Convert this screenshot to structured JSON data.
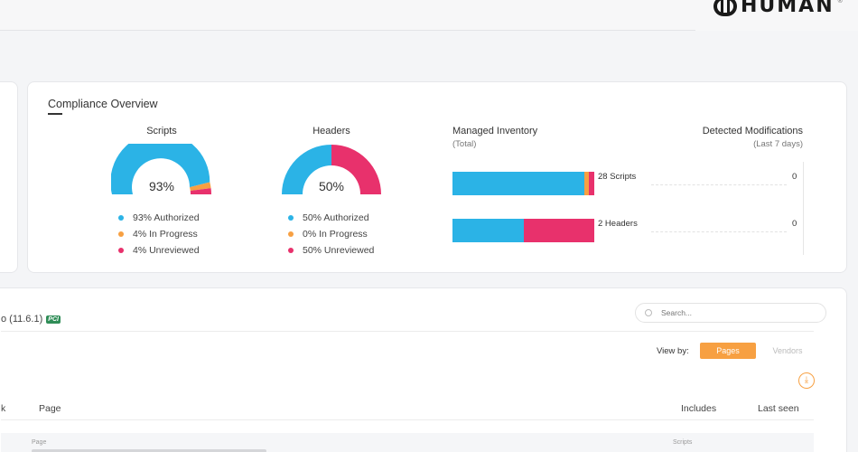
{
  "brand": {
    "logo_text": "HUMAN",
    "reg_mark": "®"
  },
  "compliance": {
    "title": "Compliance Overview",
    "scripts": {
      "label": "Scripts",
      "percent_label": "93%",
      "authorized": 93,
      "in_progress": 4,
      "unreviewed": 4,
      "legend": [
        "93% Authorized",
        "4% In Progress",
        "4% Unreviewed"
      ]
    },
    "headers": {
      "label": "Headers",
      "percent_label": "50%",
      "authorized": 50,
      "in_progress": 0,
      "unreviewed": 50,
      "legend": [
        "50% Authorized",
        "0% In Progress",
        "50% Unreviewed"
      ]
    },
    "managed_inventory": {
      "title": "Managed Inventory",
      "subtitle": "(Total)",
      "rows": [
        {
          "label": "28 Scripts",
          "authorized": 26,
          "in_progress": 1,
          "unreviewed": 1
        },
        {
          "label": "2 Headers",
          "authorized": 1,
          "in_progress": 0,
          "unreviewed": 1
        }
      ]
    },
    "detected_modifications": {
      "title": "Detected Modifications",
      "subtitle": "(Last 7 days)",
      "values": [
        "0",
        "0"
      ]
    }
  },
  "colors": {
    "authorized": "#2bb3e6",
    "in_progress": "#f7a042",
    "unreviewed": "#e8316c"
  },
  "table": {
    "version_text": "o (11.6.1)",
    "badge": "PCI",
    "search_placeholder": "Search...",
    "view_by_label": "View by:",
    "view_pages": "Pages",
    "view_vendors": "Vendors",
    "download_icon": "download-icon",
    "columns": [
      "k",
      "Page",
      "Includes",
      "Last seen"
    ],
    "row": {
      "page_label": "Page",
      "includes_label": "Scripts"
    }
  }
}
